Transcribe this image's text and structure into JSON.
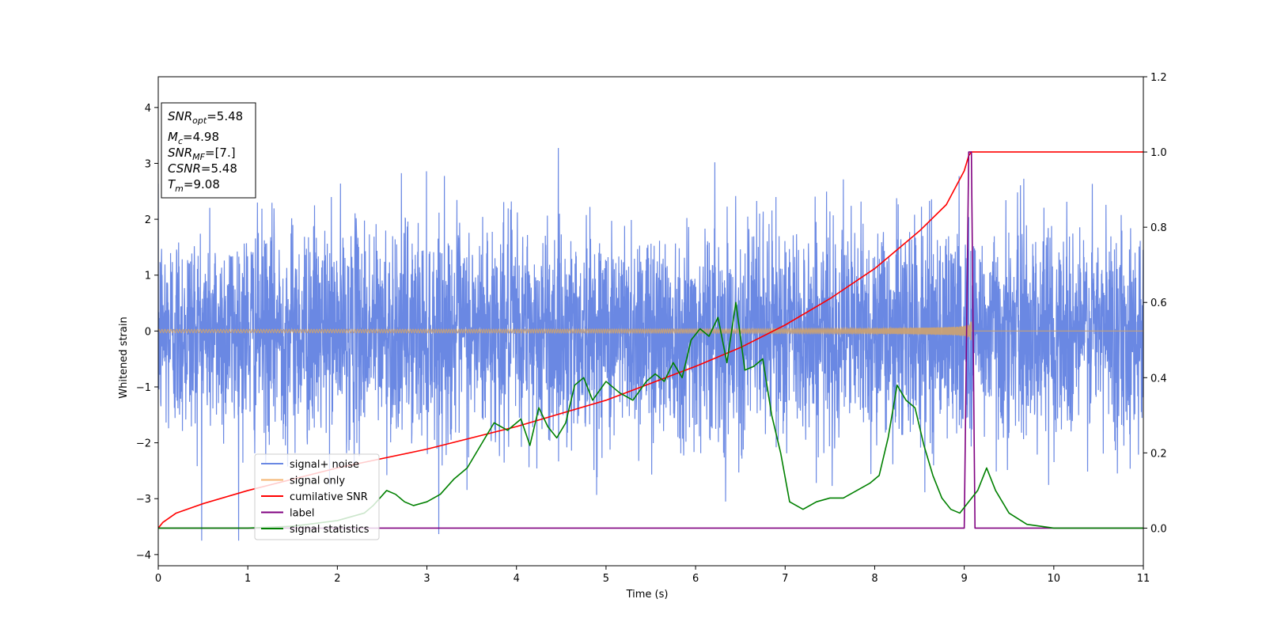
{
  "chart_data": {
    "type": "line",
    "xlabel": "Time (s)",
    "ylabel": "Whitened strain",
    "xlim": [
      0,
      11
    ],
    "ylim": [
      -4.2,
      4.55
    ],
    "y2lim": [
      -0.1,
      1.2
    ],
    "xticks": [
      0,
      1,
      2,
      3,
      4,
      5,
      6,
      7,
      8,
      9,
      10,
      11
    ],
    "yticks": [
      -4,
      -3,
      -2,
      -1,
      0,
      1,
      2,
      3,
      4
    ],
    "y2ticks": [
      0.0,
      0.2,
      0.4,
      0.6,
      0.8,
      1.0,
      1.2
    ],
    "legend_position": "lower-left",
    "info_box": {
      "snr_opt": {
        "label": "SNR",
        "sub": "opt",
        "value": "=5.48"
      },
      "mc": {
        "label": "M",
        "sub": "c",
        "value": "=4.98"
      },
      "snr_mf": {
        "label": "SNR",
        "sub": "MF",
        "value": "=[7.]"
      },
      "csnr": {
        "label": "CSNR",
        "sub": "",
        "value": "=5.48"
      },
      "tm": {
        "label": "T",
        "sub": "m",
        "value": "=9.08"
      }
    },
    "series": [
      {
        "name": "signal+ noise",
        "axis": "left",
        "color": "#6a88e3",
        "kind": "noise",
        "sigma": 0.95,
        "merger_time": 9.08
      },
      {
        "name": "signal only",
        "axis": "left",
        "color": "#f5b470",
        "kind": "chirp",
        "amplitude_start": 0.03,
        "amplitude_peak": 0.4,
        "merger_time": 9.08
      },
      {
        "name": "cumilative SNR",
        "axis": "right",
        "color": "#ff0000",
        "x": [
          0,
          0.05,
          0.2,
          0.5,
          1,
          1.5,
          2,
          3,
          4,
          5,
          6,
          6.5,
          7,
          7.5,
          8,
          8.5,
          8.8,
          9.0,
          9.05,
          9.08,
          11
        ],
        "y": [
          0.0,
          0.015,
          0.04,
          0.065,
          0.1,
          0.13,
          0.16,
          0.21,
          0.27,
          0.34,
          0.43,
          0.48,
          0.54,
          0.61,
          0.69,
          0.79,
          0.86,
          0.95,
          0.99,
          1.0,
          1.0
        ]
      },
      {
        "name": "label",
        "axis": "right",
        "color": "#800080",
        "x": [
          0,
          9.0,
          9.05,
          9.08,
          9.12,
          11
        ],
        "y": [
          0,
          0,
          1,
          1,
          0,
          0
        ]
      },
      {
        "name": "signal statistics",
        "axis": "right",
        "color": "#008000",
        "x": [
          0,
          1.0,
          1.5,
          2.0,
          2.3,
          2.4,
          2.55,
          2.65,
          2.75,
          2.85,
          3.0,
          3.15,
          3.3,
          3.45,
          3.6,
          3.75,
          3.9,
          4.05,
          4.15,
          4.25,
          4.35,
          4.45,
          4.55,
          4.65,
          4.75,
          4.85,
          5.0,
          5.15,
          5.3,
          5.45,
          5.55,
          5.65,
          5.75,
          5.85,
          5.95,
          6.05,
          6.15,
          6.25,
          6.35,
          6.45,
          6.55,
          6.65,
          6.75,
          6.85,
          6.95,
          7.05,
          7.2,
          7.35,
          7.5,
          7.65,
          7.8,
          7.95,
          8.05,
          8.15,
          8.25,
          8.35,
          8.45,
          8.55,
          8.65,
          8.75,
          8.85,
          8.95,
          9.05,
          9.15,
          9.25,
          9.35,
          9.5,
          9.7,
          10.0,
          11.0
        ],
        "y": [
          0.0,
          0.0,
          0.005,
          0.02,
          0.04,
          0.06,
          0.1,
          0.09,
          0.07,
          0.06,
          0.07,
          0.09,
          0.13,
          0.16,
          0.22,
          0.28,
          0.26,
          0.29,
          0.22,
          0.32,
          0.27,
          0.24,
          0.28,
          0.38,
          0.4,
          0.34,
          0.39,
          0.36,
          0.34,
          0.39,
          0.41,
          0.39,
          0.44,
          0.4,
          0.5,
          0.53,
          0.51,
          0.56,
          0.44,
          0.6,
          0.42,
          0.43,
          0.45,
          0.3,
          0.2,
          0.07,
          0.05,
          0.07,
          0.08,
          0.08,
          0.1,
          0.12,
          0.14,
          0.24,
          0.38,
          0.34,
          0.32,
          0.22,
          0.14,
          0.08,
          0.05,
          0.04,
          0.07,
          0.1,
          0.16,
          0.1,
          0.04,
          0.01,
          0.0,
          0.0
        ]
      }
    ]
  }
}
